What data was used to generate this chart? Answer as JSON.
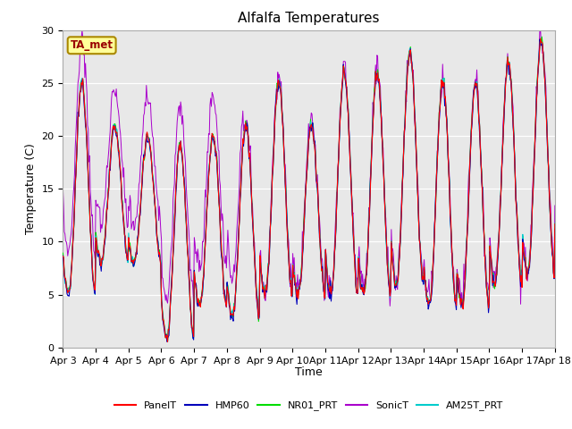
{
  "title": "Alfalfa Temperatures",
  "ylabel": "Temperature (C)",
  "xlabel": "Time",
  "annotation": "TA_met",
  "ylim": [
    0,
    30
  ],
  "yticks": [
    0,
    5,
    10,
    15,
    20,
    25,
    30
  ],
  "xtick_labels": [
    "Apr 3",
    "Apr 4",
    "Apr 5",
    "Apr 6",
    "Apr 7",
    "Apr 8",
    "Apr 9",
    "Apr 10",
    "Apr 11",
    "Apr 12",
    "Apr 13",
    "Apr 14",
    "Apr 15",
    "Apr 16",
    "Apr 17",
    "Apr 18"
  ],
  "series_names": [
    "PanelT",
    "HMP60",
    "NR01_PRT",
    "SonicT",
    "AM25T_PRT"
  ],
  "series_colors": [
    "#ff0000",
    "#0000bb",
    "#00dd00",
    "#aa00cc",
    "#00cccc"
  ],
  "background_color": "#e8e8e8",
  "figure_color": "#ffffff",
  "grid_color": "#ffffff",
  "annotation_bg": "#ffff99",
  "annotation_fc": "#990000",
  "annotation_border": "#aa8800",
  "days": 15,
  "n_points": 720,
  "title_fontsize": 11,
  "axis_fontsize": 9,
  "tick_fontsize": 8
}
